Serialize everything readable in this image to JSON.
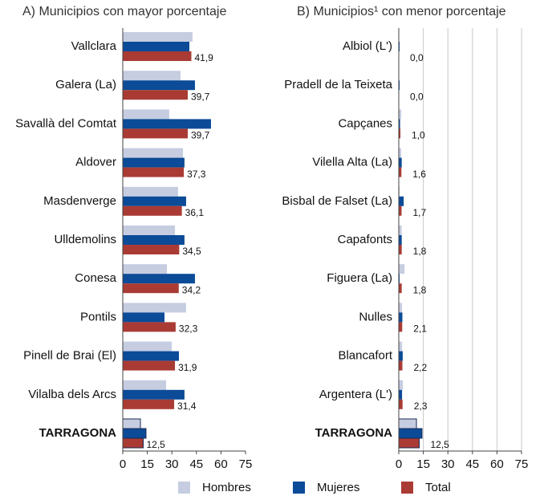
{
  "chart_data": [
    {
      "type": "hbar",
      "title": "A) Municipios con mayor porcentaje",
      "categories": [
        "Vallclara",
        "Galera (La)",
        "Savallà del Comtat",
        "Aldover",
        "Masdenverge",
        "Ulldemolins",
        "Conesa",
        "Pontils",
        "Pinell de Brai (El)",
        "Vilalba dels Arcs",
        "TARRAGONA"
      ],
      "series": [
        {
          "name": "Hombres",
          "color": "#c6cde1",
          "values": [
            42.6,
            35.3,
            28.4,
            36.8,
            33.8,
            31.9,
            27.0,
            38.7,
            29.9,
            26.5,
            10.8
          ]
        },
        {
          "name": "Mujeres",
          "color": "#0b4b97",
          "values": [
            40.7,
            44.1,
            53.9,
            37.7,
            38.7,
            37.7,
            44.1,
            25.5,
            34.3,
            37.7,
            14.2
          ]
        },
        {
          "name": "Total",
          "color": "#a93b34",
          "values": [
            41.9,
            39.7,
            39.7,
            37.3,
            36.1,
            34.5,
            34.2,
            32.3,
            31.9,
            31.4,
            12.5
          ],
          "value_labels": [
            "41,9",
            "39,7",
            "39,7",
            "37,3",
            "36,1",
            "34,5",
            "34,2",
            "32,3",
            "31,9",
            "31,4",
            "12,5"
          ]
        }
      ],
      "xlim": [
        0,
        75
      ],
      "xticks": [
        0,
        15,
        30,
        45,
        60,
        75
      ],
      "grid": false
    },
    {
      "type": "hbar",
      "title": "B) Municipios¹ con menor porcentaje",
      "categories": [
        "Albiol (L')",
        "Pradell de la Teixeta",
        "Capçanes",
        "Vilella Alta (La)",
        "Bisbal de Falset (La)",
        "Capafonts",
        "Figuera (La)",
        "Nulles",
        "Blancafort",
        "Argentera (L')",
        "TARRAGONA"
      ],
      "series": [
        {
          "name": "Hombres",
          "color": "#c6cde1",
          "values": [
            0,
            0,
            1.5,
            1.5,
            0.5,
            1.8,
            3.5,
            2.0,
            2.0,
            2.5,
            10.8
          ]
        },
        {
          "name": "Mujeres",
          "color": "#0b4b97",
          "values": [
            0.5,
            0.5,
            0.8,
            1.8,
            3.0,
            1.8,
            0.5,
            2.2,
            2.4,
            2.0,
            14.2
          ]
        },
        {
          "name": "Total",
          "color": "#a93b34",
          "values": [
            0.0,
            0.0,
            1.0,
            1.6,
            1.7,
            1.8,
            1.8,
            2.1,
            2.2,
            2.3,
            12.5
          ],
          "value_labels": [
            "0,0",
            "0,0",
            "1,0",
            "1,6",
            "1,7",
            "1,8",
            "1,8",
            "2,1",
            "2,2",
            "2,3",
            "12,5"
          ]
        }
      ],
      "xlim": [
        0,
        75
      ],
      "xticks": [
        0,
        15,
        30,
        45,
        60,
        75
      ],
      "grid": true
    }
  ]
}
